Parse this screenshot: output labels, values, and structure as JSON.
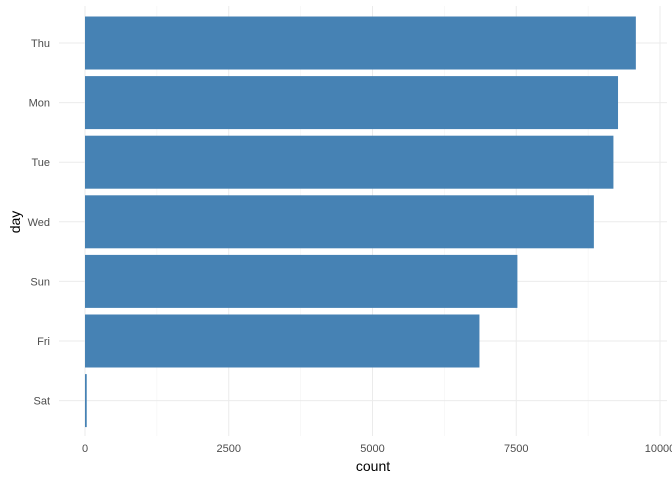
{
  "chart_data": {
    "type": "bar",
    "orientation": "horizontal",
    "categories": [
      "Thu",
      "Mon",
      "Tue",
      "Wed",
      "Sun",
      "Fri",
      "Sat"
    ],
    "values": [
      9580,
      9270,
      9190,
      8850,
      7520,
      6860,
      30
    ],
    "xlabel": "count",
    "ylabel": "day",
    "xlim": [
      0,
      10000
    ],
    "x_ticks": [
      0,
      2500,
      5000,
      7500,
      10000
    ],
    "x_tick_labels": [
      "0",
      "2500",
      "5000",
      "7500",
      "10000"
    ],
    "grid": true,
    "bar_color": "#4682b4"
  }
}
